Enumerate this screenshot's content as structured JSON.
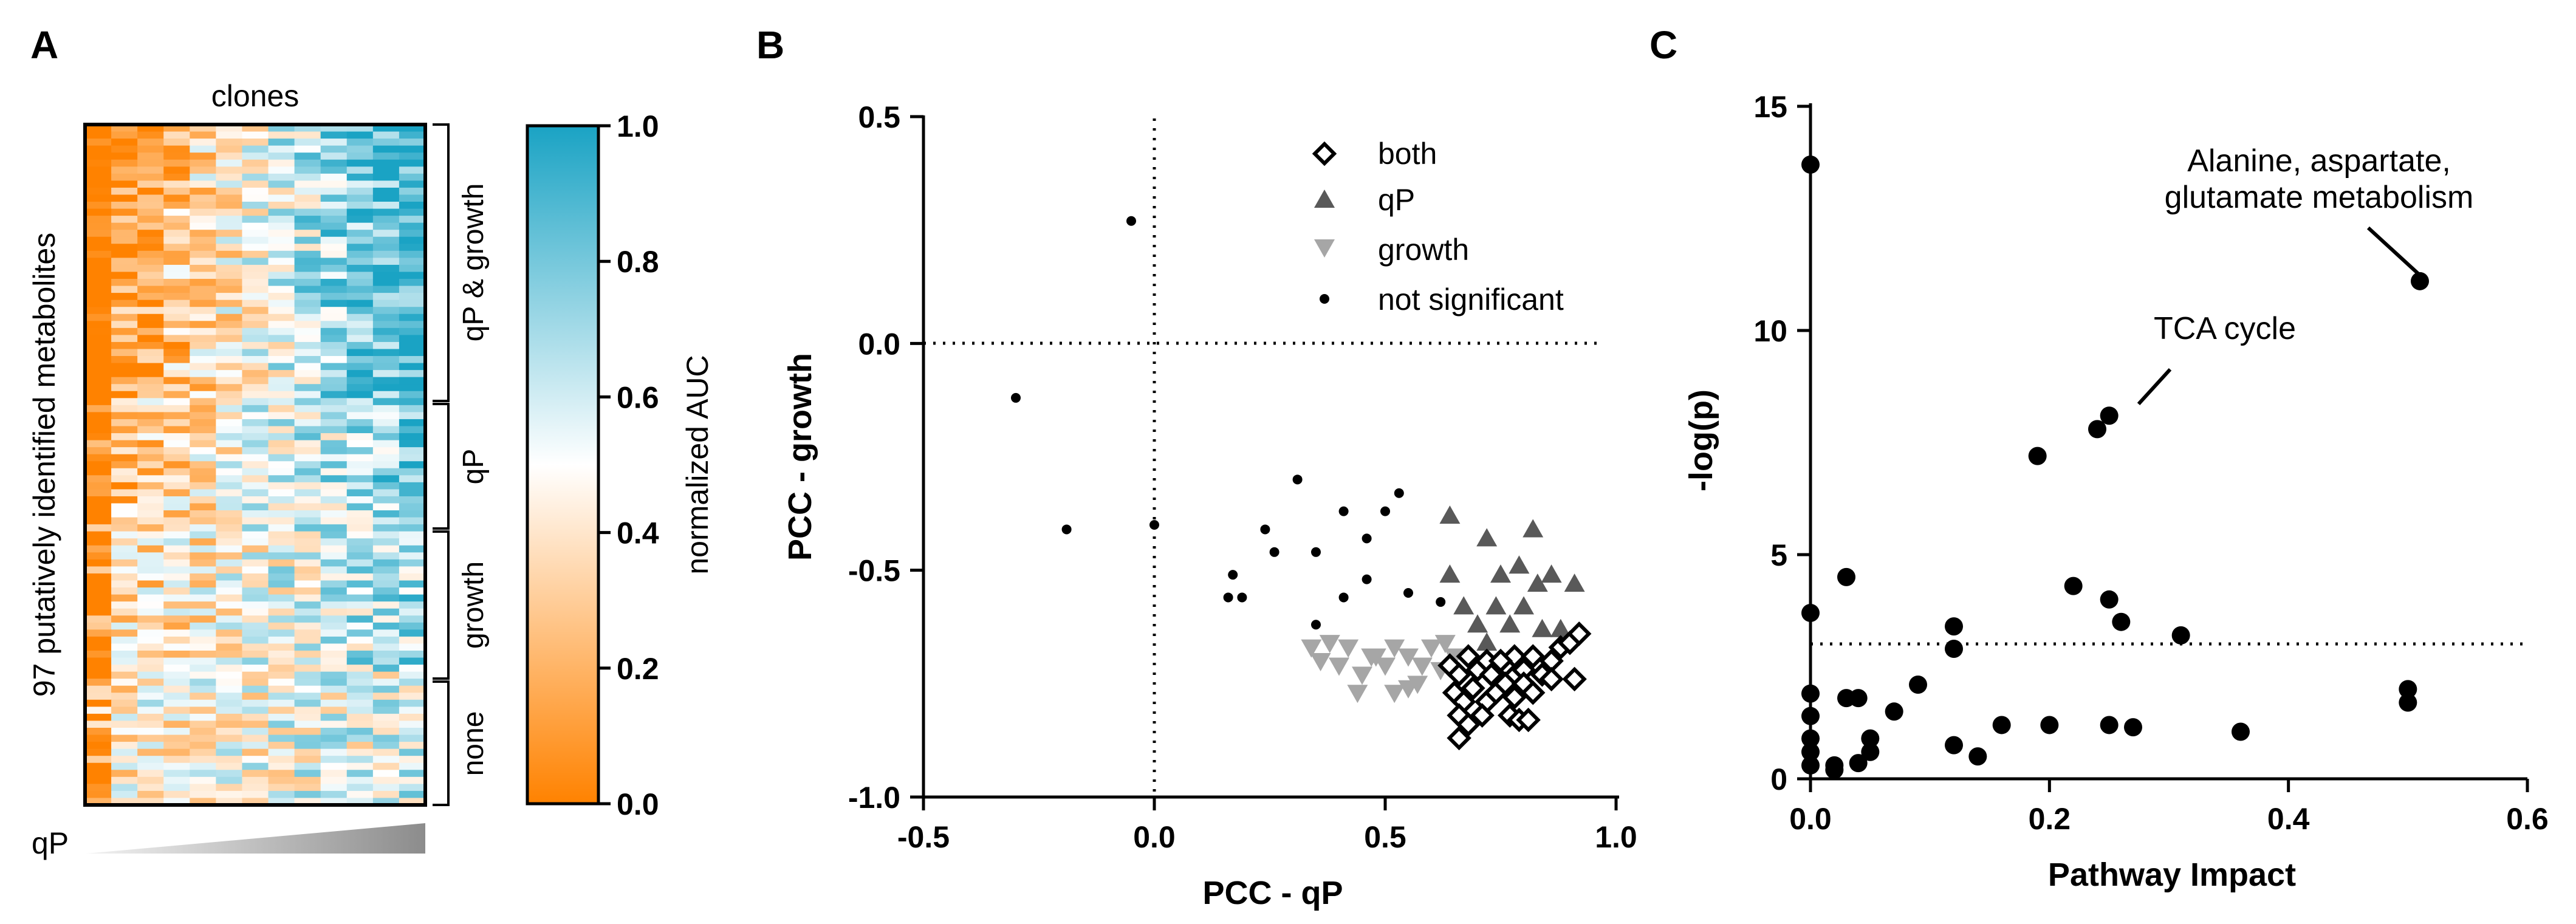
{
  "colors": {
    "cyan": "#1aa3c4",
    "white": "#ffffff",
    "orange": "#ff8200",
    "both_marker": "#000000",
    "qp_marker": "#595959",
    "growth_marker": "#a6a6a6",
    "ns_marker": "#000000"
  },
  "panel_labels": [
    "A",
    "B",
    "C"
  ],
  "chart_data": [
    {
      "type": "heatmap",
      "panel": "A",
      "title": "clones",
      "ylabel": "97 putatively identified metabolites",
      "xlabel": "qP",
      "n_rows": 97,
      "n_cols": 13,
      "row_groups": [
        {
          "label": "qP & growth",
          "start": 0,
          "end": 39
        },
        {
          "label": "qP",
          "start": 39,
          "end": 57
        },
        {
          "label": "growth",
          "start": 57,
          "end": 78
        },
        {
          "label": "none",
          "start": 78,
          "end": 97
        }
      ],
      "group_strength": [
        0.9,
        0.6,
        0.42,
        0.15
      ],
      "colorbar": {
        "label": "normalized AUC",
        "ticks": [
          "1.0",
          "0.8",
          "0.6",
          "0.4",
          "0.2",
          "0.0"
        ],
        "range": [
          0,
          1
        ]
      }
    },
    {
      "type": "scatter",
      "panel": "B",
      "xlabel": "PCC - qP",
      "ylabel": "PCC - growth",
      "xlim": [
        -0.5,
        1.0
      ],
      "ylim": [
        -1.0,
        0.5
      ],
      "xticks": [
        "-0.5",
        "0.0",
        "0.5",
        "1.0"
      ],
      "yticks": [
        "0.5",
        "0.0",
        "-0.5",
        "-1.0"
      ],
      "legend": [
        "both",
        "qP",
        "growth",
        "not significant"
      ],
      "series": [
        {
          "name": "not significant",
          "marker": "dot",
          "points": [
            [
              -0.05,
              0.27
            ],
            [
              -0.3,
              -0.12
            ],
            [
              -0.19,
              -0.41
            ],
            [
              0.0,
              -0.4
            ],
            [
              0.17,
              -0.51
            ],
            [
              0.16,
              -0.56
            ],
            [
              0.19,
              -0.56
            ],
            [
              0.24,
              -0.41
            ],
            [
              0.31,
              -0.3
            ],
            [
              0.26,
              -0.46
            ],
            [
              0.35,
              -0.46
            ],
            [
              0.41,
              -0.37
            ],
            [
              0.5,
              -0.37
            ],
            [
              0.46,
              -0.43
            ],
            [
              0.53,
              -0.33
            ],
            [
              0.35,
              -0.62
            ],
            [
              0.41,
              -0.56
            ],
            [
              0.46,
              -0.52
            ],
            [
              0.55,
              -0.55
            ],
            [
              0.62,
              -0.57
            ]
          ]
        },
        {
          "name": "qP",
          "marker": "triangle-up",
          "points": [
            [
              0.64,
              -0.38
            ],
            [
              0.64,
              -0.51
            ],
            [
              0.72,
              -0.43
            ],
            [
              0.75,
              -0.51
            ],
            [
              0.79,
              -0.49
            ],
            [
              0.82,
              -0.41
            ],
            [
              0.86,
              -0.51
            ],
            [
              0.91,
              -0.53
            ],
            [
              0.67,
              -0.58
            ],
            [
              0.7,
              -0.62
            ],
            [
              0.74,
              -0.58
            ],
            [
              0.77,
              -0.62
            ],
            [
              0.8,
              -0.58
            ],
            [
              0.84,
              -0.63
            ],
            [
              0.88,
              -0.63
            ],
            [
              0.83,
              -0.53
            ],
            [
              0.72,
              -0.66
            ]
          ]
        },
        {
          "name": "growth",
          "marker": "triangle-down",
          "points": [
            [
              0.34,
              -0.67
            ],
            [
              0.36,
              -0.7
            ],
            [
              0.38,
              -0.66
            ],
            [
              0.4,
              -0.71
            ],
            [
              0.42,
              -0.67
            ],
            [
              0.45,
              -0.73
            ],
            [
              0.47,
              -0.69
            ],
            [
              0.5,
              -0.71
            ],
            [
              0.52,
              -0.67
            ],
            [
              0.55,
              -0.69
            ],
            [
              0.58,
              -0.71
            ],
            [
              0.6,
              -0.67
            ],
            [
              0.63,
              -0.66
            ],
            [
              0.65,
              -0.69
            ],
            [
              0.44,
              -0.77
            ],
            [
              0.52,
              -0.77
            ],
            [
              0.57,
              -0.75
            ],
            [
              0.48,
              -0.69
            ],
            [
              0.62,
              -0.72
            ],
            [
              0.55,
              -0.76
            ]
          ]
        },
        {
          "name": "both",
          "marker": "diamond",
          "points": [
            [
              0.64,
              -0.71
            ],
            [
              0.66,
              -0.73
            ],
            [
              0.68,
              -0.69
            ],
            [
              0.7,
              -0.72
            ],
            [
              0.72,
              -0.7
            ],
            [
              0.74,
              -0.74
            ],
            [
              0.76,
              -0.71
            ],
            [
              0.78,
              -0.69
            ],
            [
              0.8,
              -0.72
            ],
            [
              0.82,
              -0.69
            ],
            [
              0.84,
              -0.73
            ],
            [
              0.86,
              -0.7
            ],
            [
              0.88,
              -0.67
            ],
            [
              0.9,
              -0.66
            ],
            [
              0.92,
              -0.64
            ],
            [
              0.65,
              -0.77
            ],
            [
              0.67,
              -0.79
            ],
            [
              0.69,
              -0.76
            ],
            [
              0.72,
              -0.79
            ],
            [
              0.74,
              -0.77
            ],
            [
              0.76,
              -0.75
            ],
            [
              0.78,
              -0.78
            ],
            [
              0.8,
              -0.75
            ],
            [
              0.82,
              -0.77
            ],
            [
              0.66,
              -0.82
            ],
            [
              0.68,
              -0.84
            ],
            [
              0.71,
              -0.82
            ],
            [
              0.77,
              -0.82
            ],
            [
              0.79,
              -0.83
            ],
            [
              0.81,
              -0.83
            ],
            [
              0.66,
              -0.87
            ],
            [
              0.86,
              -0.74
            ],
            [
              0.91,
              -0.74
            ],
            [
              0.73,
              -0.73
            ],
            [
              0.75,
              -0.7
            ]
          ]
        }
      ]
    },
    {
      "type": "scatter",
      "panel": "C",
      "xlabel": "Pathway Impact",
      "ylabel": "-log(p)",
      "xlim": [
        0,
        0.6
      ],
      "ylim": [
        0,
        15
      ],
      "xticks": [
        "0.0",
        "0.2",
        "0.4",
        "0.6"
      ],
      "yticks": [
        "15",
        "10",
        "5",
        "0"
      ],
      "threshold": 3.0,
      "annotations": [
        {
          "text": "Alanine, aspartate,",
          "x": 0.51,
          "y": 11.1
        },
        {
          "text": "glutamate metabolism",
          "x": 0.51,
          "y": 11.1
        },
        {
          "text": "TCA cycle",
          "x": 0.25,
          "y": 8.1
        }
      ],
      "points": [
        [
          0.0,
          13.7
        ],
        [
          0.0,
          3.7
        ],
        [
          0.0,
          1.9
        ],
        [
          0.0,
          1.4
        ],
        [
          0.0,
          0.9
        ],
        [
          0.0,
          0.6
        ],
        [
          0.0,
          0.3
        ],
        [
          0.02,
          0.3
        ],
        [
          0.02,
          0.2
        ],
        [
          0.03,
          4.5
        ],
        [
          0.03,
          1.8
        ],
        [
          0.04,
          1.8
        ],
        [
          0.04,
          0.35
        ],
        [
          0.05,
          0.9
        ],
        [
          0.05,
          0.6
        ],
        [
          0.07,
          1.5
        ],
        [
          0.09,
          2.1
        ],
        [
          0.12,
          3.4
        ],
        [
          0.12,
          2.9
        ],
        [
          0.12,
          0.75
        ],
        [
          0.14,
          0.5
        ],
        [
          0.16,
          1.2
        ],
        [
          0.19,
          7.2
        ],
        [
          0.2,
          1.2
        ],
        [
          0.22,
          4.3
        ],
        [
          0.24,
          7.8
        ],
        [
          0.25,
          8.1
        ],
        [
          0.25,
          4.0
        ],
        [
          0.26,
          3.5
        ],
        [
          0.25,
          1.2
        ],
        [
          0.27,
          1.15
        ],
        [
          0.31,
          3.2
        ],
        [
          0.36,
          1.05
        ],
        [
          0.5,
          2.0
        ],
        [
          0.5,
          1.7
        ],
        [
          0.51,
          11.1
        ]
      ]
    }
  ]
}
